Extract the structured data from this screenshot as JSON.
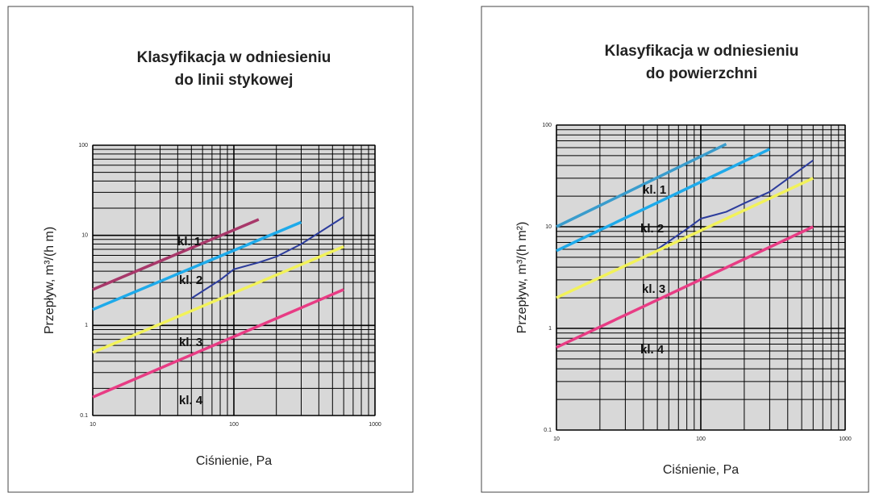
{
  "chart_data": [
    {
      "type": "line",
      "title": [
        "Klasyfikacja w odniesieniu",
        "do linii stykowej"
      ],
      "x_label": "Ciśnienie, Pa",
      "y_label": "Przepływ, m³/(h m)",
      "xlog": true,
      "ylog": true,
      "grid": true,
      "xlim": [
        10,
        1000
      ],
      "ylim": [
        0.1,
        100
      ],
      "xticks": [
        10,
        100,
        1000
      ],
      "yticks": [
        0.1,
        1,
        10,
        100
      ],
      "series": [
        {
          "color": "#a8386a",
          "x": [
            10,
            150
          ],
          "values": [
            2.5,
            15
          ]
        },
        {
          "color": "#1eaaea",
          "x": [
            10,
            300
          ],
          "values": [
            1.5,
            14
          ]
        },
        {
          "color": "#2c3c9c",
          "x": [
            50,
            80,
            100,
            150,
            200,
            300,
            600
          ],
          "values": [
            2,
            3.2,
            4.2,
            5,
            5.8,
            8,
            16
          ]
        },
        {
          "color": "#f2f25a",
          "x": [
            10,
            600
          ],
          "values": [
            0.5,
            7.5
          ]
        },
        {
          "color": "#e83c84",
          "x": [
            10,
            600
          ],
          "values": [
            0.16,
            2.5
          ]
        }
      ],
      "annotations": [
        "kl. 1",
        "kl. 2",
        "kl. 3",
        "kl. 4"
      ]
    },
    {
      "type": "line",
      "title": [
        "Klasyfikacja w odniesieniu",
        "do powierzchni"
      ],
      "x_label": "Ciśnienie, Pa",
      "y_label": "Przepływ, m³/(h m²)",
      "xlog": true,
      "ylog": true,
      "grid": true,
      "xlim": [
        10,
        1000
      ],
      "ylim": [
        0.1,
        100
      ],
      "xticks": [
        10,
        100,
        1000
      ],
      "yticks": [
        0.1,
        1,
        10,
        100
      ],
      "series": [
        {
          "color": "#3a9ccc",
          "x": [
            10,
            150
          ],
          "values": [
            10,
            65
          ]
        },
        {
          "color": "#1eaaea",
          "x": [
            10,
            300
          ],
          "values": [
            5.8,
            58
          ]
        },
        {
          "color": "#2c3c9c",
          "x": [
            50,
            80,
            100,
            150,
            200,
            300,
            600
          ],
          "values": [
            6,
            9.5,
            12,
            14,
            17,
            22,
            45
          ]
        },
        {
          "color": "#f2f25a",
          "x": [
            10,
            600
          ],
          "values": [
            2,
            30
          ]
        },
        {
          "color": "#e83c84",
          "x": [
            10,
            600
          ],
          "values": [
            0.65,
            10
          ]
        }
      ],
      "annotations": [
        "kl. 1",
        "kl. 2",
        "kl. 3",
        "kl. 4"
      ]
    }
  ]
}
